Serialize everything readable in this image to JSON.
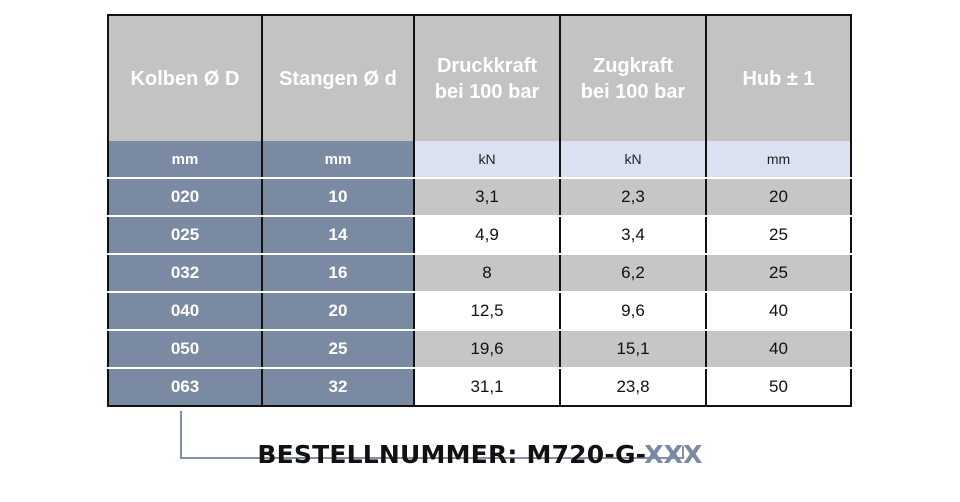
{
  "table": {
    "headers": [
      [
        "Kolben Ø D"
      ],
      [
        "Stangen Ø d"
      ],
      [
        "Druckkraft",
        "bei 100 bar"
      ],
      [
        "Zugkraft",
        "bei 100 bar"
      ],
      [
        "Hub ± 1"
      ]
    ],
    "units": [
      "mm",
      "mm",
      "kN",
      "kN",
      "mm"
    ],
    "rows": [
      [
        "020",
        "10",
        "3,1",
        "2,3",
        "20"
      ],
      [
        "025",
        "14",
        "4,9",
        "3,4",
        "25"
      ],
      [
        "032",
        "16",
        "8",
        "6,2",
        "25"
      ],
      [
        "040",
        "20",
        "12,5",
        "9,6",
        "40"
      ],
      [
        "050",
        "25",
        "19,6",
        "15,1",
        "40"
      ],
      [
        "063",
        "32",
        "31,1",
        "23,8",
        "50"
      ]
    ]
  },
  "order_number": {
    "label": "BESTELLNUMMER:",
    "prefix": "M720-G-",
    "variant": "XXX"
  },
  "colors": {
    "header_bg": "#c3c3c3",
    "dimension_col_bg": "#7b8aa3",
    "unit_row_bg": "#dce1f2",
    "shaded_row_bg": "#c6c6c6",
    "variant_text": "#7b8aa3"
  }
}
